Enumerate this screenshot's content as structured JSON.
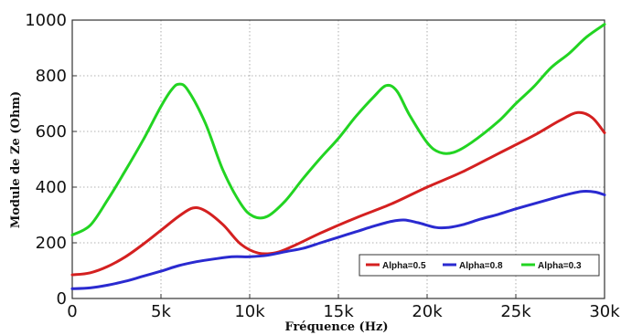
{
  "chart_data": {
    "type": "line",
    "xlabel": "Fréquence (Hz)",
    "ylabel": "Module de Ze (Ohm)",
    "xlim": [
      0,
      30000
    ],
    "ylim": [
      0,
      1000
    ],
    "xticks": [
      0,
      5000,
      10000,
      15000,
      20000,
      25000,
      30000
    ],
    "xtick_labels": [
      "0",
      "5k",
      "10k",
      "15k",
      "20k",
      "25k",
      "30k"
    ],
    "yticks": [
      0,
      200,
      400,
      600,
      800,
      1000
    ],
    "ytick_labels": [
      "0",
      "200",
      "400",
      "600",
      "800",
      "1000"
    ],
    "grid": true,
    "legend_position": "bottom-right",
    "series": [
      {
        "name": "Alpha=0.5",
        "color": "#d42020",
        "points": [
          [
            0,
            85
          ],
          [
            1000,
            92
          ],
          [
            2000,
            115
          ],
          [
            3000,
            150
          ],
          [
            4000,
            195
          ],
          [
            5000,
            245
          ],
          [
            6000,
            295
          ],
          [
            6800,
            325
          ],
          [
            7500,
            315
          ],
          [
            8500,
            265
          ],
          [
            9500,
            195
          ],
          [
            10500,
            163
          ],
          [
            11500,
            165
          ],
          [
            12500,
            190
          ],
          [
            14000,
            235
          ],
          [
            16000,
            290
          ],
          [
            18000,
            340
          ],
          [
            20000,
            400
          ],
          [
            22000,
            455
          ],
          [
            24000,
            520
          ],
          [
            26000,
            585
          ],
          [
            27500,
            640
          ],
          [
            28500,
            668
          ],
          [
            29300,
            650
          ],
          [
            30000,
            595
          ]
        ]
      },
      {
        "name": "Alpha=0.8",
        "color": "#2a2ad0",
        "points": [
          [
            0,
            35
          ],
          [
            1000,
            38
          ],
          [
            2000,
            48
          ],
          [
            3000,
            62
          ],
          [
            4000,
            80
          ],
          [
            5000,
            98
          ],
          [
            6000,
            118
          ],
          [
            7000,
            132
          ],
          [
            8000,
            142
          ],
          [
            9000,
            150
          ],
          [
            10000,
            150
          ],
          [
            11000,
            155
          ],
          [
            12000,
            168
          ],
          [
            13000,
            180
          ],
          [
            14000,
            200
          ],
          [
            15000,
            220
          ],
          [
            16000,
            240
          ],
          [
            17000,
            260
          ],
          [
            18000,
            277
          ],
          [
            18700,
            282
          ],
          [
            19500,
            272
          ],
          [
            20500,
            255
          ],
          [
            21200,
            255
          ],
          [
            22000,
            265
          ],
          [
            23000,
            285
          ],
          [
            24000,
            302
          ],
          [
            25000,
            322
          ],
          [
            26000,
            340
          ],
          [
            27000,
            358
          ],
          [
            28000,
            375
          ],
          [
            28800,
            385
          ],
          [
            29500,
            382
          ],
          [
            30000,
            372
          ]
        ]
      },
      {
        "name": "Alpha=0.3",
        "color": "#22d422",
        "points": [
          [
            0,
            228
          ],
          [
            1000,
            262
          ],
          [
            2000,
            355
          ],
          [
            3000,
            460
          ],
          [
            4000,
            570
          ],
          [
            5000,
            690
          ],
          [
            5600,
            750
          ],
          [
            6000,
            770
          ],
          [
            6500,
            750
          ],
          [
            7500,
            630
          ],
          [
            8500,
            460
          ],
          [
            9500,
            340
          ],
          [
            10200,
            295
          ],
          [
            11000,
            295
          ],
          [
            12000,
            350
          ],
          [
            13000,
            430
          ],
          [
            14000,
            505
          ],
          [
            15000,
            575
          ],
          [
            16000,
            655
          ],
          [
            17000,
            725
          ],
          [
            17700,
            765
          ],
          [
            18300,
            745
          ],
          [
            19000,
            660
          ],
          [
            20000,
            560
          ],
          [
            20700,
            525
          ],
          [
            21500,
            525
          ],
          [
            22500,
            560
          ],
          [
            24000,
            635
          ],
          [
            25000,
            700
          ],
          [
            26000,
            760
          ],
          [
            27000,
            830
          ],
          [
            28000,
            880
          ],
          [
            29000,
            940
          ],
          [
            30000,
            985
          ]
        ]
      }
    ]
  }
}
